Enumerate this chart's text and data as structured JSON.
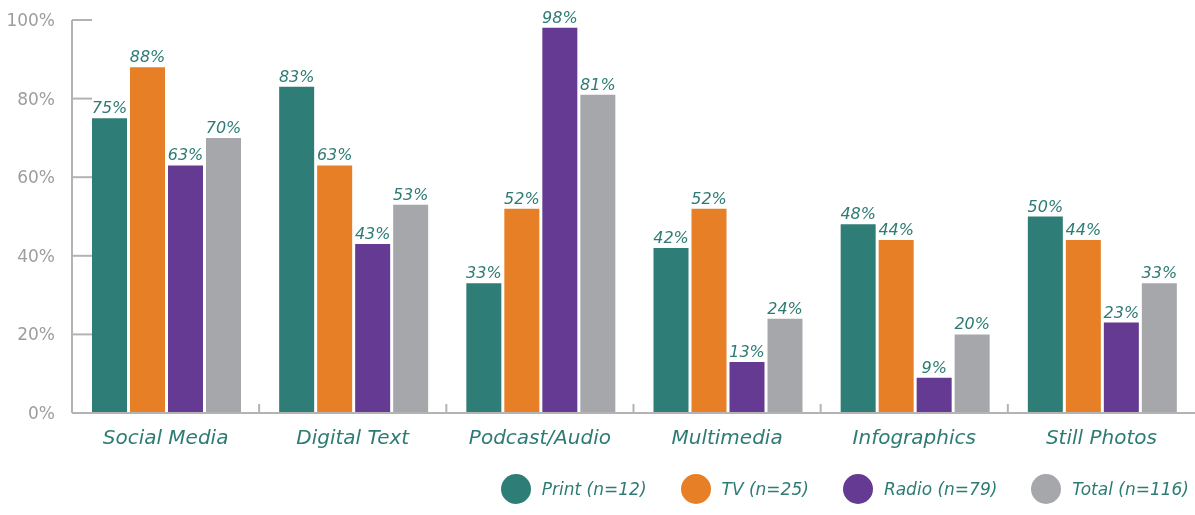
{
  "chart_data": {
    "type": "bar",
    "categories": [
      "Social Media",
      "Digital Text",
      "Podcast/Audio",
      "Multimedia",
      "Infographics",
      "Still Photos"
    ],
    "series": [
      {
        "name": "Print (n=12)",
        "color": "#2e7d76",
        "values": [
          75,
          83,
          33,
          42,
          48,
          50
        ],
        "value_labels": [
          "75%",
          "83%",
          "33%",
          "42%",
          "48%",
          "50%"
        ]
      },
      {
        "name": "TV (n=25)",
        "color": "#e67f25",
        "values": [
          88,
          63,
          52,
          52,
          44,
          44
        ],
        "value_labels": [
          "88%",
          "63%",
          "52%",
          "52%",
          "44%",
          "44%"
        ]
      },
      {
        "name": "Radio (n=79)",
        "color": "#643a93",
        "values": [
          63,
          43,
          98,
          13,
          9,
          23
        ],
        "value_labels": [
          "63%",
          "43%",
          "98%",
          "13%",
          "9%",
          "23%"
        ]
      },
      {
        "name": "Total (n=116)",
        "color": "#a6a7ab",
        "values": [
          70,
          53,
          81,
          24,
          20,
          33
        ],
        "value_labels": [
          "70%",
          "53%",
          "81%",
          "24%",
          "20%",
          "33%"
        ]
      }
    ],
    "ylim": [
      0,
      100
    ],
    "yticks": [
      {
        "value": 0,
        "label": "0%"
      },
      {
        "value": 20,
        "label": "20%"
      },
      {
        "value": 40,
        "label": "40%"
      },
      {
        "value": 60,
        "label": "60%"
      },
      {
        "value": 80,
        "label": "80%"
      },
      {
        "value": 100,
        "label": "100%"
      }
    ],
    "legend": "bottom right"
  }
}
